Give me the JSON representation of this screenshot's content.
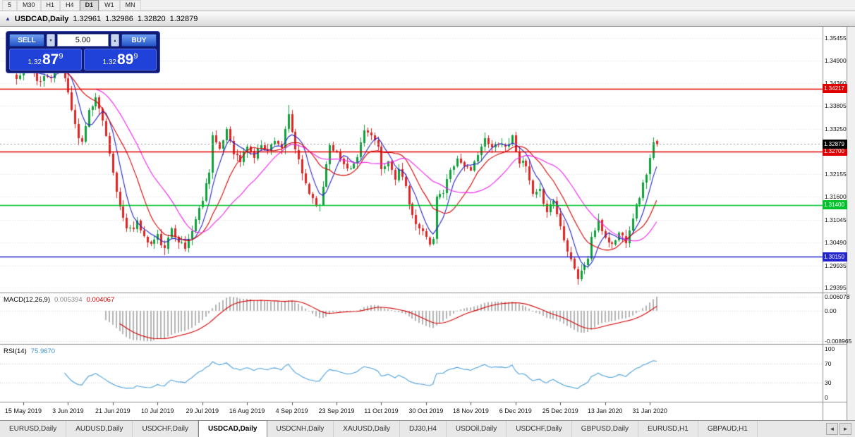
{
  "toolbar": {
    "timeframes": [
      {
        "label": "5",
        "active": false
      },
      {
        "label": "M30",
        "active": false
      },
      {
        "label": "H1",
        "active": false
      },
      {
        "label": "H4",
        "active": false
      },
      {
        "label": "D1",
        "active": true
      },
      {
        "label": "W1",
        "active": false
      },
      {
        "label": "MN",
        "active": false
      }
    ]
  },
  "titlebar": {
    "symbol_period": "USDCAD,Daily",
    "open": "1.32961",
    "high": "1.32986",
    "low": "1.32820",
    "close": "1.32879"
  },
  "trade_panel": {
    "sell_label": "SELL",
    "buy_label": "BUY",
    "volume": "5.00",
    "sell_price": {
      "prefix": "1.32",
      "pips": "87",
      "pipette": "9"
    },
    "buy_price": {
      "prefix": "1.32",
      "pips": "89",
      "pipette": "9"
    }
  },
  "price_axis": {
    "labels": [
      "1.35455",
      "1.34900",
      "1.34360",
      "1.33805",
      "1.33250",
      "1.32695",
      "1.32155",
      "1.31600",
      "1.31045",
      "1.30490",
      "1.29935",
      "1.29395"
    ]
  },
  "hlines": [
    {
      "label": "1.34217",
      "value": 1.34217,
      "color": "#e00000"
    },
    {
      "label": "1.32700",
      "value": 1.327,
      "color": "#e00000"
    },
    {
      "label": "1.31400",
      "value": 1.314,
      "color": "#00c32b"
    },
    {
      "label": "1.30150",
      "value": 1.3015,
      "color": "#2525cc"
    }
  ],
  "current_price": {
    "label": "1.32879",
    "value": 1.32879,
    "color": "#000000"
  },
  "macd_panel": {
    "name": "MACD(12,26,9)",
    "value_main": "0.005394",
    "value_signal": "0.004067",
    "axis_labels": [
      "0.006078",
      "0.00",
      "-0.008965"
    ]
  },
  "rsi_panel": {
    "name": "RSI(14)",
    "value": "75.9670",
    "axis_labels": [
      "100",
      "70",
      "30",
      "0"
    ],
    "levels": [
      70,
      30
    ]
  },
  "date_axis": {
    "labels": [
      {
        "text": "15 May 2019",
        "bar": 2
      },
      {
        "text": "3 Jun 2019",
        "bar": 15
      },
      {
        "text": "21 Jun 2019",
        "bar": 28
      },
      {
        "text": "10 Jul 2019",
        "bar": 41
      },
      {
        "text": "29 Jul 2019",
        "bar": 54
      },
      {
        "text": "16 Aug 2019",
        "bar": 67
      },
      {
        "text": "4 Sep 2019",
        "bar": 80
      },
      {
        "text": "23 Sep 2019",
        "bar": 93
      },
      {
        "text": "11 Oct 2019",
        "bar": 106
      },
      {
        "text": "30 Oct 2019",
        "bar": 119
      },
      {
        "text": "18 Nov 2019",
        "bar": 132
      },
      {
        "text": "6 Dec 2019",
        "bar": 145
      },
      {
        "text": "25 Dec 2019",
        "bar": 158
      },
      {
        "text": "13 Jan 2020",
        "bar": 171
      },
      {
        "text": "31 Jan 2020",
        "bar": 184
      }
    ]
  },
  "tabs": {
    "items": [
      "EURUSD,Daily",
      "AUDUSD,Daily",
      "USDCHF,Daily",
      "USDCAD,Daily",
      "USDCNH,Daily",
      "XAUUSD,Daily",
      "DJ30,H4",
      "USDOil,Daily",
      "USDCHF,Daily",
      "GBPUSD,Daily",
      "EURUSD,H1",
      "GBPAUD,H1"
    ],
    "active_index": 3
  },
  "chart_data": {
    "type": "candlestick",
    "symbol": "USDCAD",
    "timeframe": "Daily",
    "bars": 187,
    "x_range": [
      "15 May 2019",
      "4 Feb 2020"
    ],
    "price_range_visible": [
      1.2928,
      1.3572
    ],
    "last_bar": {
      "open": 1.32961,
      "high": 1.32986,
      "low": 1.3282,
      "close": 1.32879
    },
    "close_anchors": [
      [
        0,
        1.3445
      ],
      [
        2,
        1.3462
      ],
      [
        4,
        1.3475
      ],
      [
        6,
        1.344
      ],
      [
        8,
        1.3452
      ],
      [
        10,
        1.3448
      ],
      [
        12,
        1.3495
      ],
      [
        13,
        1.3488
      ],
      [
        14,
        1.3445
      ],
      [
        16,
        1.3375
      ],
      [
        18,
        1.3305
      ],
      [
        19,
        1.3295
      ],
      [
        21,
        1.337
      ],
      [
        23,
        1.34
      ],
      [
        25,
        1.3345
      ],
      [
        27,
        1.326
      ],
      [
        28,
        1.3215
      ],
      [
        30,
        1.3135
      ],
      [
        32,
        1.309
      ],
      [
        34,
        1.3075
      ],
      [
        35,
        1.3105
      ],
      [
        37,
        1.306
      ],
      [
        39,
        1.3045
      ],
      [
        41,
        1.3065
      ],
      [
        43,
        1.303
      ],
      [
        45,
        1.3085
      ],
      [
        47,
        1.3055
      ],
      [
        49,
        1.3035
      ],
      [
        51,
        1.308
      ],
      [
        53,
        1.313
      ],
      [
        54,
        1.3155
      ],
      [
        56,
        1.3225
      ],
      [
        57,
        1.331
      ],
      [
        59,
        1.327
      ],
      [
        61,
        1.3325
      ],
      [
        63,
        1.327
      ],
      [
        65,
        1.3245
      ],
      [
        67,
        1.3285
      ],
      [
        69,
        1.3255
      ],
      [
        71,
        1.329
      ],
      [
        73,
        1.327
      ],
      [
        75,
        1.33
      ],
      [
        77,
        1.328
      ],
      [
        79,
        1.3355
      ],
      [
        81,
        1.3275
      ],
      [
        83,
        1.3215
      ],
      [
        85,
        1.317
      ],
      [
        87,
        1.3145
      ],
      [
        88,
        1.3135
      ],
      [
        90,
        1.324
      ],
      [
        91,
        1.329
      ],
      [
        93,
        1.3265
      ],
      [
        95,
        1.324
      ],
      [
        97,
        1.3228
      ],
      [
        99,
        1.325
      ],
      [
        101,
        1.332
      ],
      [
        103,
        1.3308
      ],
      [
        105,
        1.3288
      ],
      [
        106,
        1.3225
      ],
      [
        108,
        1.3238
      ],
      [
        110,
        1.3205
      ],
      [
        111,
        1.3232
      ],
      [
        113,
        1.318
      ],
      [
        115,
        1.311
      ],
      [
        117,
        1.308
      ],
      [
        119,
        1.3068
      ],
      [
        120,
        1.3048
      ],
      [
        121,
        1.3055
      ],
      [
        122,
        1.316
      ],
      [
        124,
        1.3172
      ],
      [
        126,
        1.3228
      ],
      [
        128,
        1.3252
      ],
      [
        130,
        1.3238
      ],
      [
        132,
        1.3218
      ],
      [
        134,
        1.3268
      ],
      [
        136,
        1.3298
      ],
      [
        138,
        1.3278
      ],
      [
        140,
        1.3292
      ],
      [
        142,
        1.3282
      ],
      [
        144,
        1.3305
      ],
      [
        146,
        1.3248
      ],
      [
        148,
        1.3232
      ],
      [
        150,
        1.3162
      ],
      [
        152,
        1.3172
      ],
      [
        154,
        1.3128
      ],
      [
        156,
        1.3152
      ],
      [
        158,
        1.3088
      ],
      [
        160,
        1.3032
      ],
      [
        162,
        1.2988
      ],
      [
        163,
        1.2962
      ],
      [
        164,
        1.2978
      ],
      [
        166,
        1.3012
      ],
      [
        167,
        1.3062
      ],
      [
        169,
        1.3098
      ],
      [
        171,
        1.3062
      ],
      [
        173,
        1.3042
      ],
      [
        175,
        1.3072
      ],
      [
        177,
        1.3055
      ],
      [
        179,
        1.3112
      ],
      [
        181,
        1.3162
      ],
      [
        183,
        1.3218
      ],
      [
        184,
        1.3252
      ],
      [
        185,
        1.3292
      ],
      [
        186,
        1.32879
      ]
    ],
    "wick_anchors": [
      [
        12,
        "h",
        1.35
      ],
      [
        43,
        "l",
        1.3028
      ],
      [
        79,
        "h",
        1.3383
      ],
      [
        120,
        "l",
        1.304
      ],
      [
        163,
        "l",
        1.295
      ]
    ],
    "noise": 0.0007,
    "noise_seed": 11,
    "moving_averages": [
      {
        "period": 6,
        "color": "#2424c8"
      },
      {
        "period": 13,
        "color": "#d40000"
      },
      {
        "period": 24,
        "color": "#f020f0"
      }
    ],
    "colors": {
      "up": "#0fa03c",
      "down": "#df2423",
      "grid": "#dcdcdc",
      "macd_hist": "#b4b4b4",
      "macd_signal": "#d40000",
      "rsi_line": "#4aa0dc",
      "separator": "#909090"
    }
  }
}
